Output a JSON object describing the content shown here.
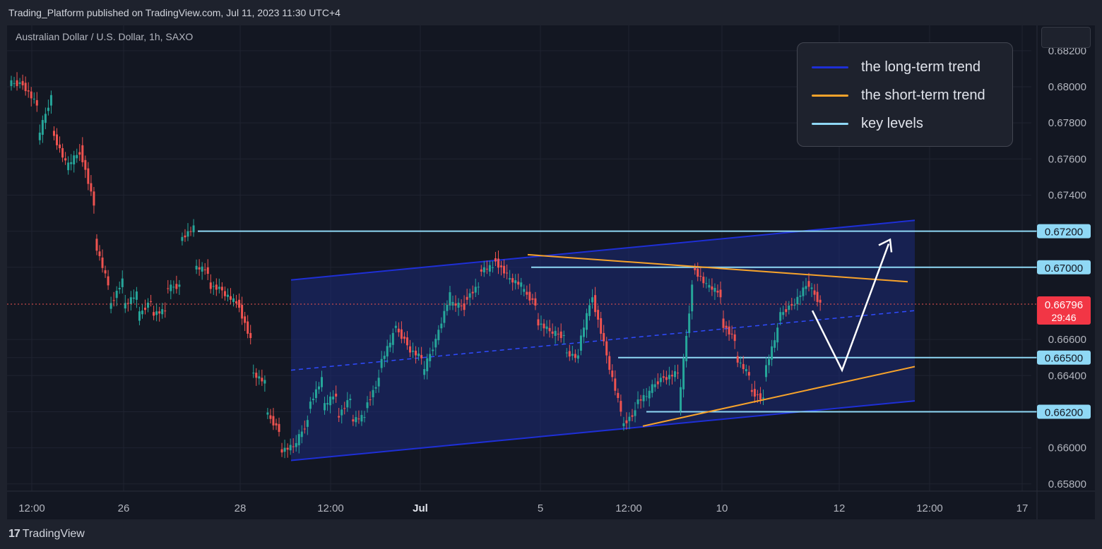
{
  "header": {
    "publish_line": "Trading_Platform published on TradingView.com, Jul 11, 2023 11:30 UTC+4",
    "symbol_line": "Australian Dollar / U.S. Dollar, 1h, SAXO"
  },
  "legend": {
    "items": [
      {
        "label": "the long-term trend",
        "color": "#1e2fd6"
      },
      {
        "label": "the short-term trend",
        "color": "#f7a32b"
      },
      {
        "label": "key levels",
        "color": "#8fd8f5"
      }
    ]
  },
  "footer": {
    "logo": "17",
    "brand": "TradingView"
  },
  "chart_data": {
    "type": "candlestick",
    "ylim": [
      0.6576,
      0.6834
    ],
    "y_ticks": [
      "0.68200",
      "0.68000",
      "0.67800",
      "0.67600",
      "0.67400",
      "0.67200",
      "0.67000",
      "0.66600",
      "0.66500",
      "0.66400",
      "0.66200",
      "0.66000",
      "0.65800"
    ],
    "x_ticks": [
      "12:00",
      "26",
      "28",
      "12:00",
      "Jul",
      "5",
      "12:00",
      "10",
      "12",
      "12:00",
      "17"
    ],
    "key_levels": [
      {
        "value": 0.672,
        "label": "0.67200"
      },
      {
        "value": 0.67,
        "label": "0.67000"
      },
      {
        "value": 0.665,
        "label": "0.66500"
      },
      {
        "value": 0.662,
        "label": "0.66200"
      }
    ],
    "last_price": {
      "value": 0.66796,
      "label": "0.66796",
      "countdown": "29:46"
    },
    "price_path": [
      [
        0.6802,
        0.6801
      ],
      [
        0.679,
        0.677
      ],
      [
        0.6795,
        0.6776
      ],
      [
        0.6758,
        0.6755
      ],
      [
        0.6764,
        0.6766
      ],
      [
        0.6735,
        0.6715
      ],
      [
        0.669,
        0.6677
      ],
      [
        0.6693,
        0.6678
      ],
      [
        0.6685,
        0.6672
      ],
      [
        0.6682,
        0.6674
      ],
      [
        0.6676,
        0.6688
      ],
      [
        0.669,
        0.6715
      ],
      [
        0.6722,
        0.67
      ],
      [
        0.6698,
        0.669
      ],
      [
        0.6688,
        0.6686
      ],
      [
        0.668,
        0.6682
      ],
      [
        0.666,
        0.6642
      ],
      [
        0.6636,
        0.662
      ],
      [
        0.661,
        0.6598
      ],
      [
        0.6601,
        0.66
      ],
      [
        0.6615,
        0.6622
      ],
      [
        0.6638,
        0.6622
      ],
      [
        0.663,
        0.6616
      ],
      [
        0.6628,
        0.6615
      ],
      [
        0.6617,
        0.6622
      ],
      [
        0.6638,
        0.6645
      ],
      [
        0.6662,
        0.6668
      ],
      [
        0.6658,
        0.6655
      ],
      [
        0.665,
        0.664
      ],
      [
        0.666,
        0.666
      ],
      [
        0.6685,
        0.668
      ],
      [
        0.6678,
        0.6682
      ],
      [
        0.669,
        0.6698
      ],
      [
        0.67,
        0.6705
      ],
      [
        0.6696,
        0.6694
      ],
      [
        0.669,
        0.6688
      ],
      [
        0.668,
        0.667
      ],
      [
        0.6665,
        0.6664
      ],
      [
        0.6662,
        0.6653
      ],
      [
        0.665,
        0.6655
      ],
      [
        0.6685,
        0.6683
      ],
      [
        0.6652,
        0.665
      ],
      [
        0.662,
        0.6612
      ],
      [
        0.662,
        0.6625
      ],
      [
        0.663,
        0.6632
      ],
      [
        0.664,
        0.6638
      ],
      [
        0.6642,
        0.662
      ],
      [
        0.669,
        0.67
      ],
      [
        0.669,
        0.669
      ],
      [
        0.6685,
        0.667
      ],
      [
        0.666,
        0.665
      ],
      [
        0.664,
        0.6632
      ],
      [
        0.6627,
        0.664
      ],
      [
        0.6665,
        0.6672
      ],
      [
        0.668,
        0.6678
      ],
      [
        0.669,
        0.6692
      ],
      [
        0.668,
        0.668
      ]
    ],
    "long_term_channel": {
      "upper": [
        [
          0.6693
        ],
        [
          0.6726
        ]
      ],
      "lower": [
        [
          0.6593
        ],
        [
          0.6626
        ]
      ],
      "mid": [
        [
          0.6643
        ],
        [
          0.6676
        ]
      ]
    },
    "short_term_trend": {
      "upper": [
        0.6707,
        0.6692
      ],
      "lower": [
        0.6612,
        0.6645
      ]
    },
    "projection": [
      0.6676,
      0.6643,
      0.6713
    ]
  }
}
